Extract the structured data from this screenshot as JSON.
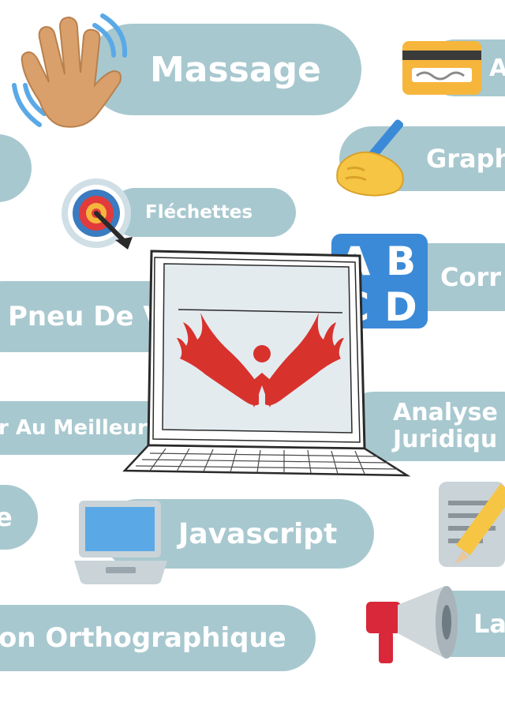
{
  "colors": {
    "pill": "#a8c8cf",
    "pill_text": "#ffffff",
    "logo_red": "#d8322d",
    "hand": "#d9a06b",
    "card": "#f6b63c",
    "abcd_blue": "#3b8ad8",
    "megaphone_red": "#d8283a"
  },
  "tags": {
    "massage": "Massage",
    "a": "A",
    "graph": "Graph",
    "flechettes": "Fléchettes",
    "corr": "Corr",
    "pneu": "Pneu De V",
    "meilleur": "r Au Meilleur",
    "analyse_1": "Analyse",
    "analyse_2": "Juridiqu",
    "javascript": "Javascript",
    "e_fragment": "e",
    "orthographique": "on Orthographique",
    "la": "La"
  },
  "icons": {
    "wave": "waving-hand-icon",
    "card": "credit-card-icon",
    "writing": "writing-hand-icon",
    "target": "direct-hit-target-icon",
    "abcd": "abcd-letters-icon",
    "laptop": "laptop-computer-icon",
    "memo": "memo-pencil-icon",
    "megaphone": "megaphone-icon",
    "logo": "red-wings-logo-icon"
  }
}
